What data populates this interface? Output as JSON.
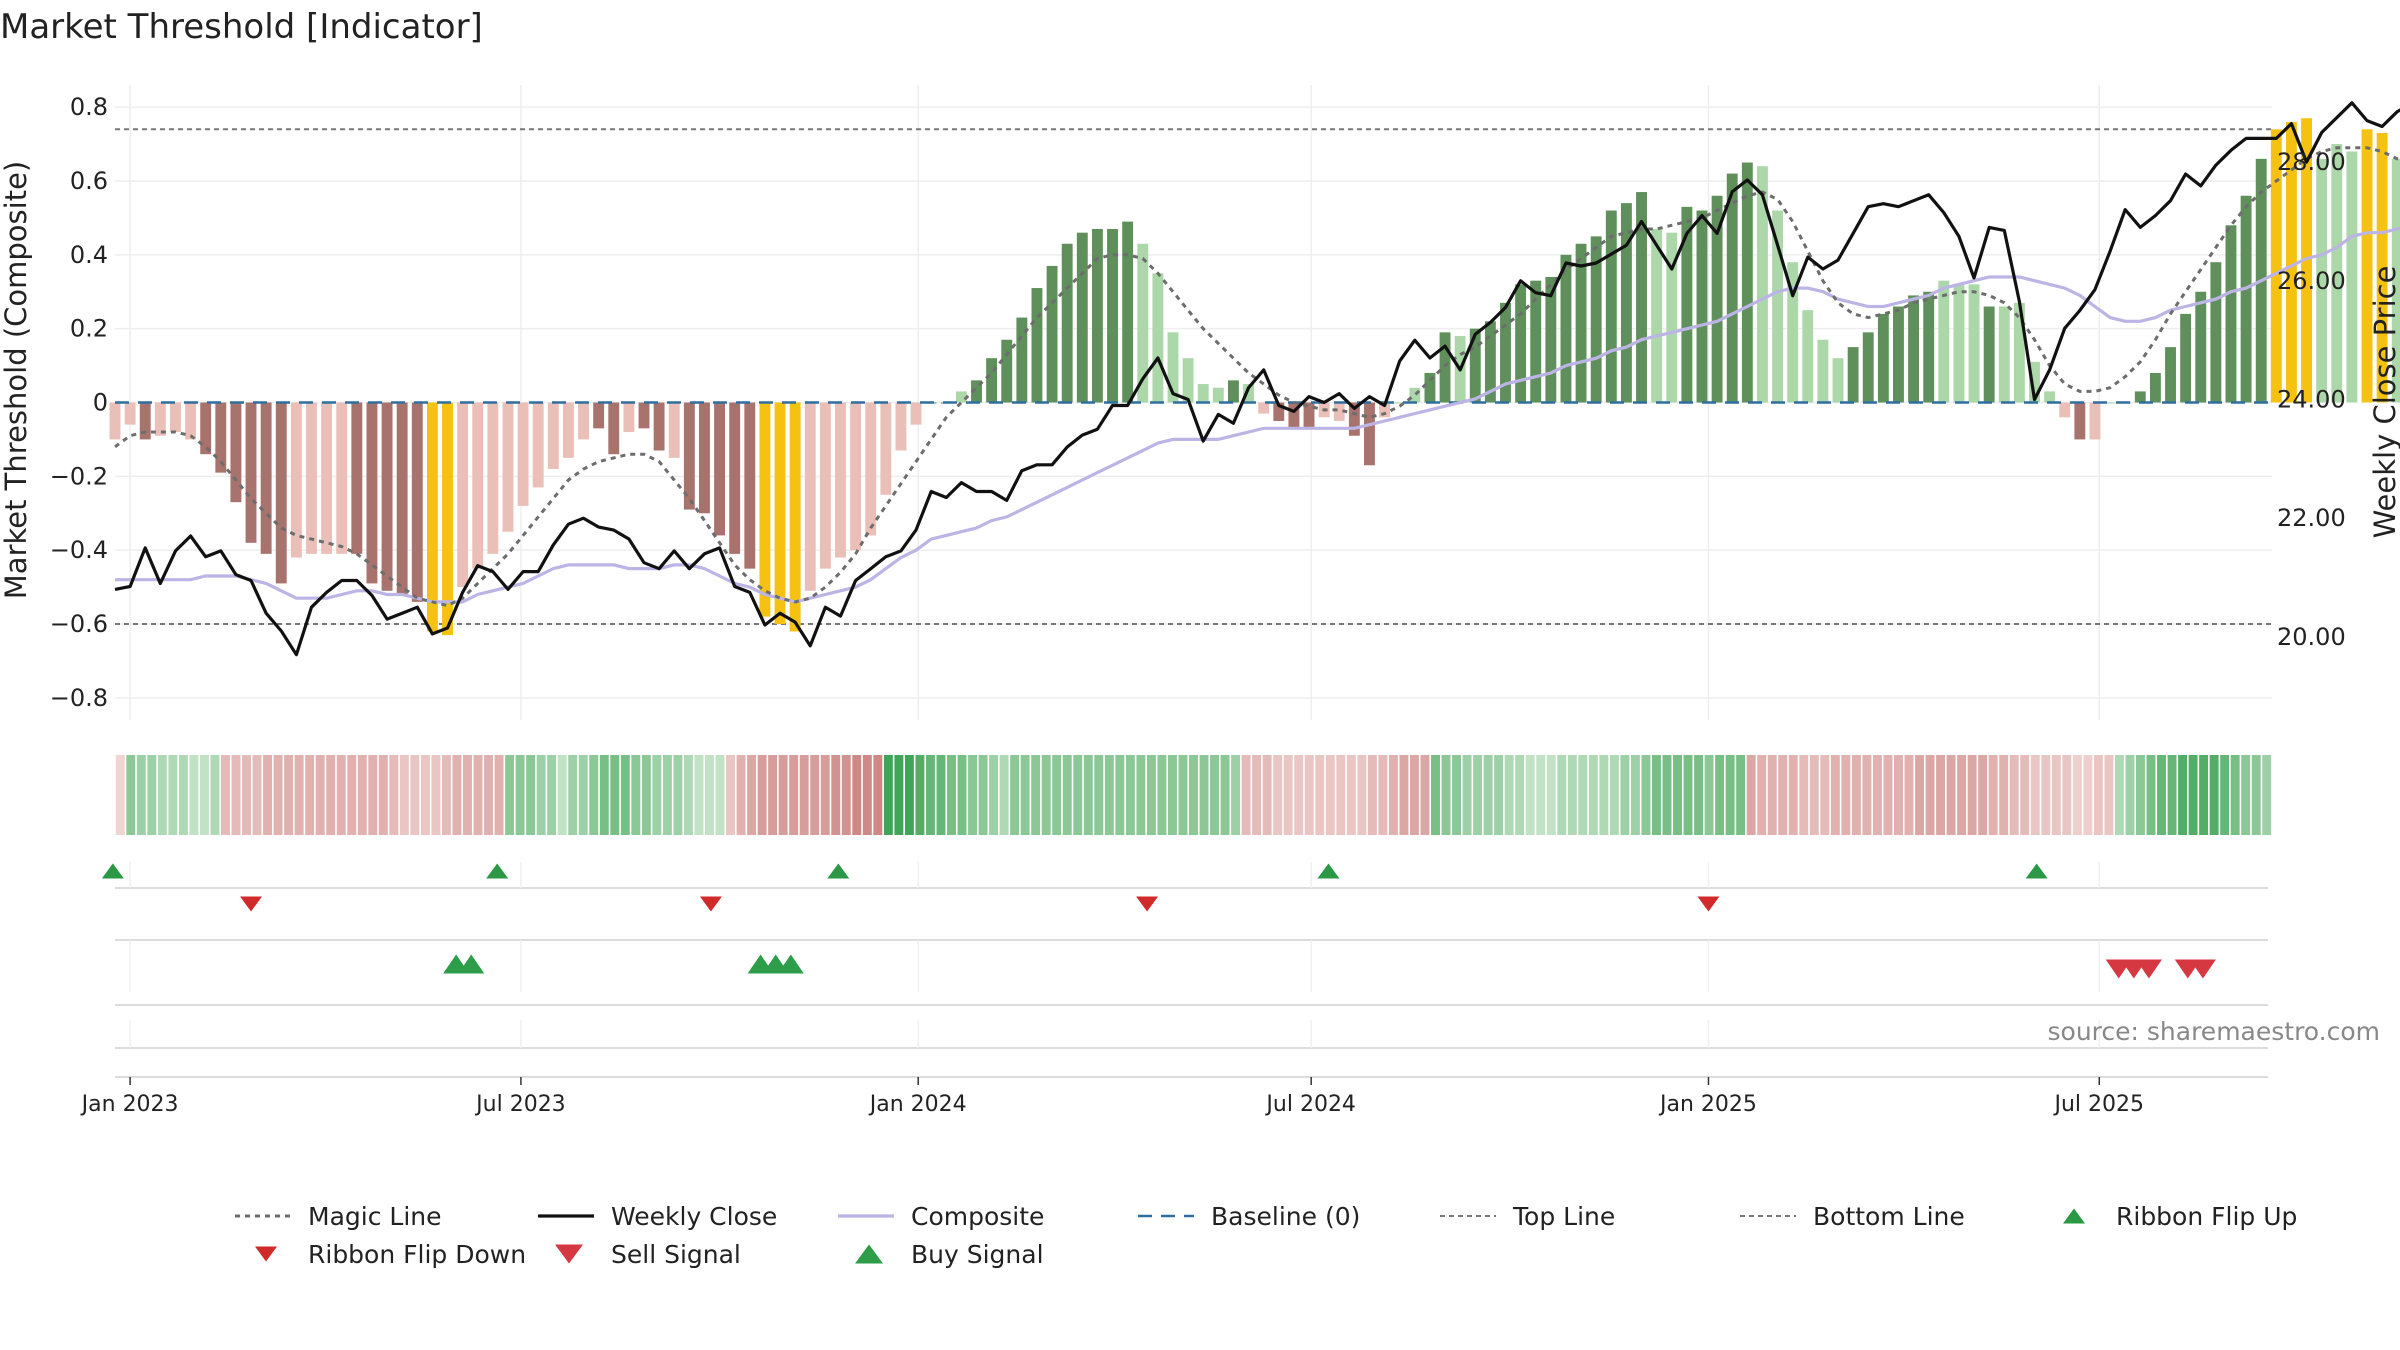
{
  "chart_data": {
    "type": "bar",
    "title": "Market Threshold [Indicator]",
    "ylabel_left": "Market Threshold (Composite)",
    "ylabel_right": "Weekly Close Price",
    "source": "source: sharemaestro.com",
    "left_axis": {
      "range": [
        -0.86,
        0.86
      ],
      "ticks": [
        0.8,
        0.6,
        0.4,
        0.2,
        0,
        -0.2,
        -0.4,
        -0.6,
        -0.8
      ],
      "tick_labels": [
        "0.8",
        "0.6",
        "0.4",
        "0.2",
        "0",
        "−0.2",
        "−0.4",
        "−0.6",
        "−0.8"
      ]
    },
    "right_axis": {
      "range": [
        18.6,
        29.3
      ],
      "ticks": [
        28,
        26,
        24,
        22,
        20
      ],
      "tick_labels": [
        "28.00",
        "26.00",
        "24.00",
        "22.00",
        "20.00"
      ]
    },
    "x_axis": {
      "start": "2022-12-25",
      "end": "2025-09-19",
      "tick_dates": [
        "2023-01-01",
        "2023-07-01",
        "2024-01-01",
        "2024-07-01",
        "2025-01-01",
        "2025-07-01"
      ],
      "tick_labels": [
        "Jan 2023",
        "Jul 2023",
        "Jan 2024",
        "Jul 2024",
        "Jan 2025",
        "Jul 2025"
      ]
    },
    "top_line": 0.74,
    "bottom_line": -0.6,
    "baseline": 0,
    "weeks_start": "2022-12-25",
    "composite_bars": [
      -0.1,
      -0.06,
      -0.1,
      -0.09,
      -0.08,
      -0.1,
      -0.14,
      -0.19,
      -0.27,
      -0.38,
      -0.41,
      -0.49,
      -0.42,
      -0.41,
      -0.41,
      -0.41,
      -0.41,
      -0.49,
      -0.51,
      -0.52,
      -0.54,
      -0.62,
      -0.63,
      -0.5,
      -0.45,
      -0.41,
      -0.35,
      -0.28,
      -0.23,
      -0.18,
      -0.15,
      -0.1,
      -0.07,
      -0.14,
      -0.08,
      -0.07,
      -0.13,
      -0.15,
      -0.29,
      -0.3,
      -0.36,
      -0.41,
      -0.45,
      -0.58,
      -0.6,
      -0.62,
      -0.51,
      -0.45,
      -0.42,
      -0.4,
      -0.36,
      -0.25,
      -0.13,
      -0.06,
      0.0,
      0.0,
      0.03,
      0.06,
      0.12,
      0.17,
      0.23,
      0.31,
      0.37,
      0.43,
      0.46,
      0.47,
      0.47,
      0.49,
      0.43,
      0.35,
      0.19,
      0.12,
      0.05,
      0.04,
      0.06,
      0.05,
      -0.03,
      -0.05,
      -0.07,
      -0.07,
      -0.04,
      -0.05,
      -0.09,
      -0.17,
      -0.04,
      0.0,
      0.04,
      0.08,
      0.19,
      0.18,
      0.2,
      0.22,
      0.27,
      0.32,
      0.33,
      0.34,
      0.4,
      0.43,
      0.45,
      0.52,
      0.54,
      0.57,
      0.47,
      0.46,
      0.53,
      0.52,
      0.56,
      0.62,
      0.65,
      0.64,
      0.52,
      0.38,
      0.25,
      0.17,
      0.12,
      0.15,
      0.19,
      0.24,
      0.26,
      0.29,
      0.3,
      0.33,
      0.32,
      0.32,
      0.26,
      0.26,
      0.27,
      0.11,
      0.03,
      -0.04,
      -0.1,
      -0.1,
      0.0,
      0.0,
      0.03,
      0.08,
      0.15,
      0.24,
      0.3,
      0.38,
      0.48,
      0.56,
      0.66,
      0.74,
      0.76,
      0.77,
      0.66,
      0.7,
      0.68,
      0.74,
      0.73,
      0.66,
      0.63,
      0.62
    ],
    "bar_categories": [
      "lightred",
      "lightred",
      "darkred",
      "lightred",
      "lightred",
      "lightred",
      "darkred",
      "darkred",
      "darkred",
      "darkred",
      "darkred",
      "darkred",
      "lightred",
      "lightred",
      "lightred",
      "lightred",
      "darkred",
      "darkred",
      "darkred",
      "darkred",
      "darkred",
      "yellow",
      "yellow",
      "lightred",
      "lightred",
      "lightred",
      "lightred",
      "lightred",
      "lightred",
      "lightred",
      "lightred",
      "lightred",
      "darkred",
      "darkred",
      "lightred",
      "darkred",
      "darkred",
      "lightred",
      "darkred",
      "darkred",
      "darkred",
      "darkred",
      "darkred",
      "yellow",
      "yellow",
      "yellow",
      "lightred",
      "lightred",
      "lightred",
      "lightred",
      "lightred",
      "lightred",
      "lightred",
      "lightred",
      "darkgreen",
      "darkgreen",
      "lightgreen",
      "darkgreen",
      "darkgreen",
      "darkgreen",
      "darkgreen",
      "darkgreen",
      "darkgreen",
      "darkgreen",
      "darkgreen",
      "darkgreen",
      "darkgreen",
      "darkgreen",
      "lightgreen",
      "lightgreen",
      "lightgreen",
      "lightgreen",
      "lightgreen",
      "lightgreen",
      "darkgreen",
      "lightgreen",
      "lightred",
      "darkred",
      "darkred",
      "darkred",
      "lightred",
      "lightred",
      "darkred",
      "darkred",
      "lightred",
      "lightgreen",
      "lightgreen",
      "darkgreen",
      "darkgreen",
      "lightgreen",
      "darkgreen",
      "darkgreen",
      "darkgreen",
      "darkgreen",
      "darkgreen",
      "darkgreen",
      "darkgreen",
      "darkgreen",
      "darkgreen",
      "darkgreen",
      "darkgreen",
      "darkgreen",
      "lightgreen",
      "lightgreen",
      "darkgreen",
      "darkgreen",
      "darkgreen",
      "darkgreen",
      "darkgreen",
      "lightgreen",
      "lightgreen",
      "lightgreen",
      "lightgreen",
      "lightgreen",
      "lightgreen",
      "darkgreen",
      "darkgreen",
      "darkgreen",
      "darkgreen",
      "darkgreen",
      "darkgreen",
      "lightgreen",
      "lightgreen",
      "lightgreen",
      "darkgreen",
      "lightgreen",
      "lightgreen",
      "lightgreen",
      "lightgreen",
      "lightred",
      "darkred",
      "lightred",
      "lightgreen",
      "darkgreen",
      "darkgreen",
      "darkgreen",
      "darkgreen",
      "darkgreen",
      "darkgreen",
      "darkgreen",
      "darkgreen",
      "darkgreen",
      "darkgreen",
      "yellow",
      "yellow",
      "yellow",
      "lightgreen",
      "lightgreen",
      "lightgreen",
      "yellow",
      "yellow",
      "lightgreen",
      "lightgreen",
      "lightgreen"
    ],
    "magic_line": [
      -0.12,
      -0.09,
      -0.08,
      -0.08,
      -0.08,
      -0.09,
      -0.12,
      -0.16,
      -0.21,
      -0.26,
      -0.3,
      -0.34,
      -0.36,
      -0.37,
      -0.38,
      -0.39,
      -0.41,
      -0.44,
      -0.47,
      -0.5,
      -0.53,
      -0.54,
      -0.55,
      -0.53,
      -0.49,
      -0.45,
      -0.41,
      -0.36,
      -0.31,
      -0.26,
      -0.21,
      -0.18,
      -0.16,
      -0.15,
      -0.14,
      -0.14,
      -0.16,
      -0.21,
      -0.26,
      -0.32,
      -0.38,
      -0.44,
      -0.48,
      -0.51,
      -0.53,
      -0.54,
      -0.53,
      -0.5,
      -0.46,
      -0.41,
      -0.34,
      -0.28,
      -0.22,
      -0.16,
      -0.1,
      -0.04,
      0.0,
      0.04,
      0.08,
      0.13,
      0.18,
      0.23,
      0.27,
      0.31,
      0.35,
      0.39,
      0.4,
      0.4,
      0.39,
      0.35,
      0.3,
      0.25,
      0.2,
      0.16,
      0.12,
      0.08,
      0.05,
      0.02,
      0.0,
      -0.01,
      -0.02,
      -0.02,
      -0.03,
      -0.04,
      -0.03,
      -0.01,
      0.02,
      0.06,
      0.1,
      0.13,
      0.15,
      0.18,
      0.21,
      0.24,
      0.28,
      0.32,
      0.36,
      0.39,
      0.42,
      0.45,
      0.46,
      0.47,
      0.47,
      0.48,
      0.49,
      0.5,
      0.52,
      0.54,
      0.56,
      0.57,
      0.55,
      0.49,
      0.41,
      0.33,
      0.27,
      0.24,
      0.23,
      0.24,
      0.25,
      0.27,
      0.28,
      0.29,
      0.3,
      0.3,
      0.29,
      0.27,
      0.23,
      0.17,
      0.1,
      0.05,
      0.03,
      0.03,
      0.04,
      0.07,
      0.11,
      0.17,
      0.24,
      0.3,
      0.36,
      0.42,
      0.48,
      0.53,
      0.57,
      0.6,
      0.63,
      0.66,
      0.68,
      0.69,
      0.69,
      0.69,
      0.68,
      0.66,
      0.65
    ],
    "composite_line": [
      -0.48,
      -0.48,
      -0.48,
      -0.48,
      -0.48,
      -0.48,
      -0.47,
      -0.47,
      -0.47,
      -0.48,
      -0.49,
      -0.51,
      -0.53,
      -0.53,
      -0.53,
      -0.52,
      -0.51,
      -0.51,
      -0.52,
      -0.52,
      -0.53,
      -0.54,
      -0.54,
      -0.54,
      -0.52,
      -0.51,
      -0.5,
      -0.49,
      -0.47,
      -0.45,
      -0.44,
      -0.44,
      -0.44,
      -0.44,
      -0.45,
      -0.45,
      -0.45,
      -0.44,
      -0.44,
      -0.45,
      -0.47,
      -0.49,
      -0.5,
      -0.52,
      -0.53,
      -0.54,
      -0.53,
      -0.52,
      -0.51,
      -0.5,
      -0.48,
      -0.45,
      -0.42,
      -0.4,
      -0.37,
      -0.36,
      -0.35,
      -0.34,
      -0.32,
      -0.31,
      -0.29,
      -0.27,
      -0.25,
      -0.23,
      -0.21,
      -0.19,
      -0.17,
      -0.15,
      -0.13,
      -0.11,
      -0.1,
      -0.1,
      -0.1,
      -0.1,
      -0.09,
      -0.08,
      -0.07,
      -0.07,
      -0.07,
      -0.07,
      -0.07,
      -0.07,
      -0.07,
      -0.06,
      -0.05,
      -0.04,
      -0.03,
      -0.02,
      -0.01,
      0.0,
      0.01,
      0.03,
      0.05,
      0.06,
      0.07,
      0.08,
      0.1,
      0.11,
      0.12,
      0.14,
      0.15,
      0.17,
      0.18,
      0.19,
      0.2,
      0.21,
      0.22,
      0.24,
      0.26,
      0.28,
      0.3,
      0.31,
      0.31,
      0.3,
      0.28,
      0.27,
      0.26,
      0.26,
      0.27,
      0.28,
      0.29,
      0.31,
      0.32,
      0.33,
      0.34,
      0.34,
      0.34,
      0.33,
      0.32,
      0.31,
      0.29,
      0.26,
      0.23,
      0.22,
      0.22,
      0.23,
      0.25,
      0.26,
      0.27,
      0.28,
      0.3,
      0.31,
      0.33,
      0.35,
      0.37,
      0.39,
      0.4,
      0.42,
      0.45,
      0.46,
      0.46,
      0.47,
      0.48,
      0.5,
      0.52,
      0.54,
      0.56,
      0.58
    ],
    "weekly_close": [
      20.8,
      20.85,
      21.5,
      20.9,
      21.45,
      21.7,
      21.35,
      21.45,
      21.05,
      20.95,
      20.4,
      20.1,
      19.7,
      20.5,
      20.75,
      20.95,
      20.95,
      20.7,
      20.3,
      20.4,
      20.5,
      20.05,
      20.15,
      20.75,
      21.2,
      21.1,
      20.8,
      21.1,
      21.1,
      21.55,
      21.9,
      22.0,
      21.85,
      21.8,
      21.65,
      21.25,
      21.15,
      21.45,
      21.15,
      21.4,
      21.5,
      20.85,
      20.75,
      20.2,
      20.4,
      20.25,
      19.85,
      20.5,
      20.35,
      20.95,
      21.15,
      21.35,
      21.45,
      21.8,
      22.45,
      22.35,
      22.6,
      22.45,
      22.45,
      22.3,
      22.8,
      22.9,
      22.9,
      23.2,
      23.4,
      23.5,
      23.9,
      23.9,
      24.35,
      24.7,
      24.1,
      24.0,
      23.3,
      23.75,
      23.6,
      24.2,
      24.5,
      23.9,
      23.8,
      24.05,
      23.95,
      24.1,
      23.85,
      24.05,
      23.9,
      24.65,
      25.0,
      24.7,
      24.9,
      24.5,
      25.1,
      25.3,
      25.55,
      26.0,
      25.8,
      25.75,
      26.3,
      26.25,
      26.3,
      26.45,
      26.6,
      27.0,
      26.6,
      26.2,
      26.8,
      27.1,
      26.8,
      27.5,
      27.7,
      27.45,
      26.6,
      25.75,
      26.4,
      26.2,
      26.35,
      26.8,
      27.25,
      27.3,
      27.25,
      27.35,
      27.45,
      27.15,
      26.75,
      26.05,
      26.9,
      26.85,
      25.65,
      24.0,
      24.5,
      25.2,
      25.5,
      25.85,
      26.5,
      27.2,
      26.9,
      27.1,
      27.35,
      27.8,
      27.6,
      27.95,
      28.2,
      28.4,
      28.4,
      28.4,
      28.65,
      28.0,
      28.5,
      28.75,
      29.0,
      28.7,
      28.6,
      28.85,
      29.0,
      28.95,
      29.05
    ],
    "ribbon_intensity": [
      0.15,
      0.5,
      0.4,
      0.4,
      0.3,
      0.3,
      0.3,
      0.2,
      0.2,
      0.3,
      0.4,
      0.4,
      0.4,
      0.4,
      0.5,
      0.5,
      0.5,
      0.5,
      0.5,
      0.5,
      0.5,
      0.5,
      0.5,
      0.5,
      0.5,
      0.5,
      0.4,
      0.3,
      0.3,
      0.3,
      0.3,
      0.4,
      0.5,
      0.5,
      0.5,
      0.5,
      0.5,
      0.5,
      0.5,
      0.5,
      0.4,
      0.4,
      0.2,
      0.4,
      0.4,
      0.5,
      0.6,
      0.6,
      0.6,
      0.5,
      0.5,
      0.4,
      0.4,
      0.4,
      0.3,
      0.2,
      0.2,
      0.2,
      0.3,
      0.5,
      0.6,
      0.7,
      0.7,
      0.7,
      0.7,
      0.7,
      0.7,
      0.7,
      0.8,
      0.8,
      0.9,
      0.9,
      0.9,
      0.9,
      0.9,
      0.9,
      0.8,
      0.7,
      0.7,
      0.6,
      0.6,
      0.5,
      0.5,
      0.4,
      0.3,
      0.5,
      0.5,
      0.5,
      0.5,
      0.5,
      0.5,
      0.5,
      0.5,
      0.5,
      0.5,
      0.5,
      0.5,
      0.5,
      0.5,
      0.5,
      0.5,
      0.5,
      0.5,
      0.5,
      0.5,
      0.5,
      0.4,
      0.4,
      0.4,
      0.4,
      0.3,
      0.3,
      0.3,
      0.3,
      0.3,
      0.3,
      0.3,
      0.3,
      0.3,
      0.4,
      0.4,
      0.5,
      0.6,
      0.6,
      0.6,
      0.6,
      0.5,
      0.5,
      0.4,
      0.4,
      0.4,
      0.4,
      0.3,
      0.3,
      0.2,
      0.2,
      0.2,
      0.3,
      0.3,
      0.3,
      0.3,
      0.3,
      0.3,
      0.4,
      0.4,
      0.5,
      0.6,
      0.6,
      0.6,
      0.6,
      0.6,
      0.5,
      0.6,
      0.6,
      0.6,
      0.6,
      0.5,
      0.5,
      0.5,
      0.5,
      0.4,
      0.4,
      0.4,
      0.5,
      0.5,
      0.5,
      0.5,
      0.5,
      0.5,
      0.5,
      0.5,
      0.6,
      0.6,
      0.6,
      0.6,
      0.6,
      0.6,
      0.6,
      0.5,
      0.5,
      0.4,
      0.4,
      0.3,
      0.3,
      0.3,
      0.3,
      0.2,
      0.2,
      0.3,
      0.3,
      0.3,
      0.4,
      0.5,
      0.6,
      0.7,
      0.7,
      0.8,
      0.8,
      0.8,
      0.8,
      0.7,
      0.6,
      0.5,
      0.5,
      0.4
    ],
    "ribbon_sign": [
      -1,
      1,
      1,
      1,
      1,
      1,
      1,
      1,
      1,
      1,
      -1,
      -1,
      -1,
      -1,
      -1,
      -1,
      -1,
      -1,
      -1,
      -1,
      -1,
      -1,
      -1,
      -1,
      -1,
      -1,
      -1,
      -1,
      -1,
      -1,
      -1,
      -1,
      -1,
      -1,
      -1,
      -1,
      -1,
      1,
      1,
      1,
      1,
      1,
      1,
      1,
      1,
      1,
      1,
      1,
      1,
      1,
      1,
      1,
      1,
      1,
      1,
      1,
      1,
      1,
      -1,
      -1,
      -1,
      -1,
      -1,
      -1,
      -1,
      -1,
      -1,
      -1,
      -1,
      -1,
      -1,
      -1,
      -1,
      1,
      1,
      1,
      1,
      1,
      1,
      1,
      1,
      1,
      1,
      1,
      1,
      1,
      1,
      1,
      1,
      1,
      1,
      1,
      1,
      1,
      1,
      1,
      1,
      1,
      1,
      1,
      1,
      1,
      1,
      1,
      1,
      1,
      1,
      -1,
      -1,
      -1,
      -1,
      -1,
      -1,
      -1,
      -1,
      -1,
      -1,
      -1,
      -1,
      -1,
      -1,
      -1,
      -1,
      -1,
      -1,
      1,
      1,
      1,
      1,
      1,
      1,
      1,
      1,
      1,
      1,
      1,
      1,
      1,
      1,
      1,
      1,
      1,
      1,
      1,
      1,
      1,
      1,
      1,
      1,
      1,
      1,
      1,
      1,
      1,
      1,
      -1,
      -1,
      -1,
      -1,
      -1,
      -1,
      -1,
      -1,
      -1,
      -1,
      -1,
      -1,
      -1,
      -1,
      -1,
      -1,
      -1,
      -1,
      -1,
      -1,
      -1,
      -1,
      -1,
      -1,
      -1,
      -1,
      -1,
      -1,
      -1,
      -1,
      -1,
      -1,
      -1,
      -1,
      -1,
      1,
      1,
      1,
      1,
      1,
      1,
      1,
      1,
      1,
      1,
      1,
      1,
      1,
      1,
      1,
      1,
      1,
      1,
      1,
      1,
      1,
      1,
      1
    ],
    "ribbon_flip_up": [
      "2022-12-24",
      "2023-06-20",
      "2023-11-25",
      "2024-07-09",
      "2025-06-02"
    ],
    "ribbon_flip_down": [
      "2023-02-26",
      "2023-09-27",
      "2024-04-16",
      "2025-01-01"
    ],
    "buy_signal": [
      "2023-06-01",
      "2023-06-08",
      "2023-10-20",
      "2023-10-27",
      "2023-11-03"
    ],
    "sell_signal": [
      "2025-07-10",
      "2025-07-17",
      "2025-07-24",
      "2025-08-11",
      "2025-08-18"
    ],
    "legend": [
      {
        "label": "Magic Line",
        "key": "magic"
      },
      {
        "label": "Weekly Close",
        "key": "close"
      },
      {
        "label": "Composite",
        "key": "composite"
      },
      {
        "label": "Baseline (0)",
        "key": "baseline"
      },
      {
        "label": "Top Line",
        "key": "top"
      },
      {
        "label": "Bottom Line",
        "key": "bottom"
      },
      {
        "label": "Ribbon Flip Up",
        "key": "flipup"
      },
      {
        "label": "Ribbon Flip Down",
        "key": "flipdown"
      },
      {
        "label": "Sell Signal",
        "key": "sell"
      },
      {
        "label": "Buy Signal",
        "key": "buy"
      }
    ],
    "legend_position": "bottom",
    "colors": {
      "darkgreen": "#5f8f5a",
      "lightgreen": "#acd7a8",
      "darkred": "#a8726d",
      "lightred": "#e9bfb8",
      "yellow": "#f6c211",
      "magic": "#6d6d6d",
      "close": "#111111",
      "composite": "#bdb4e6",
      "baseline": "#2f6f9f",
      "threshold": "#777777",
      "flipup": "#2b9846",
      "flipdown": "#d02a2a",
      "buy": "#2e9d4a",
      "sell": "#d63842",
      "grid": "#eeeeee"
    }
  }
}
